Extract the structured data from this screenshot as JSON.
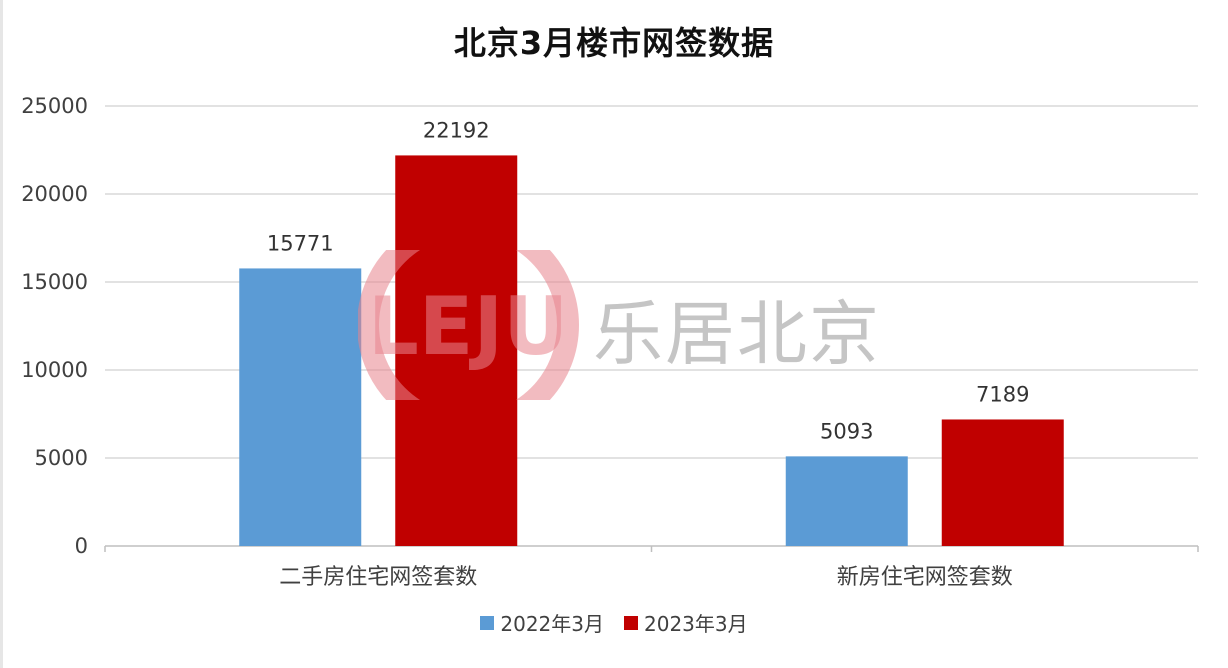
{
  "chart_data": {
    "type": "bar",
    "title": "北京3月楼市网签数据",
    "categories": [
      "二手房住宅网签套数",
      "新房住宅网签套数"
    ],
    "series": [
      {
        "name": "2022年3月",
        "values": [
          15771,
          5093
        ],
        "color": "#5b9bd5"
      },
      {
        "name": "2023年3月",
        "values": [
          22192,
          7189
        ],
        "color": "#c00000"
      }
    ],
    "ylim": [
      0,
      25000
    ],
    "yticks": [
      0,
      5000,
      10000,
      15000,
      20000,
      25000
    ],
    "grid": true,
    "legend_position": "bottom"
  },
  "watermark": {
    "logo_text": "LEJU",
    "text": "乐居北京",
    "logo_color": "#e8848c"
  }
}
